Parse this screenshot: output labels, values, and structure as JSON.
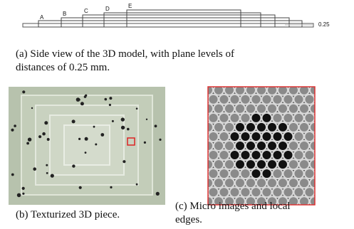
{
  "figure_a": {
    "labels": [
      "A",
      "B",
      "C",
      "D",
      "E"
    ],
    "scale_label": "0.25",
    "caption": [
      "(a) Side view of the 3D model, with plane levels of",
      "distances of 0.25 mm."
    ]
  },
  "figure_b": {
    "caption": "(b) Texturized 3D piece."
  },
  "figure_c": {
    "caption": [
      "(c) Micro images and local",
      "edges."
    ]
  }
}
